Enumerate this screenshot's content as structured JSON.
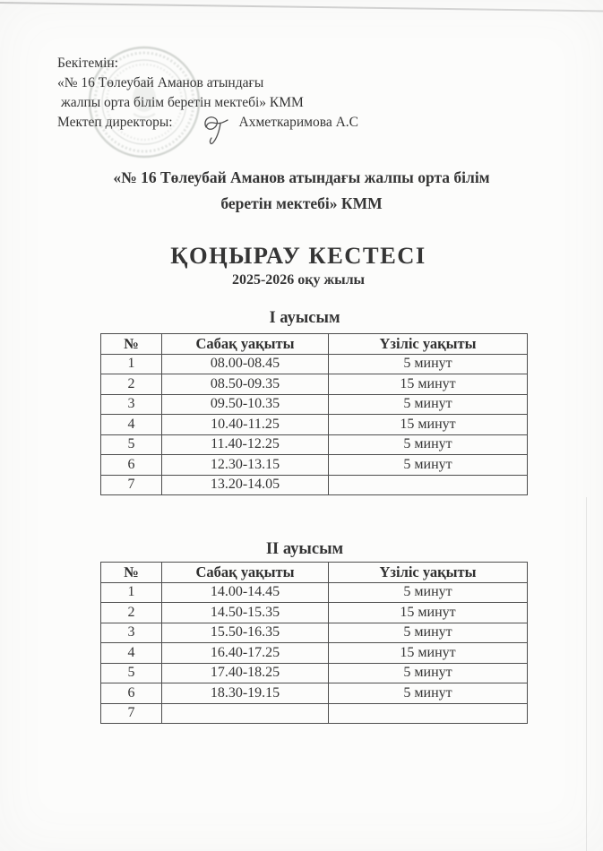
{
  "approval_block": {
    "line1": "Бекітемін:",
    "line2": "«№ 16 Төлеубай Аманов атындағы",
    "line3": "жалпы орта білім беретін мектебі» КММ",
    "director_label": "Мектеп директоры:",
    "director_name": "Ахметкаримова А.С"
  },
  "school_name": {
    "line1": "«№ 16 Төлеубай Аманов атындағы жалпы орта білім",
    "line2": "беретін мектебі» КММ"
  },
  "title": "ҚОҢЫРАУ КЕСТЕСІ",
  "subtitle": "2025-2026 оқу жылы",
  "tables": [
    {
      "section_title": "I ауысым",
      "headers": [
        "№",
        "Сабақ уақыты",
        "Үзіліс уақыты"
      ],
      "rows": [
        [
          "1",
          "08.00-08.45",
          "5 минут"
        ],
        [
          "2",
          "08.50-09.35",
          "15 минут"
        ],
        [
          "3",
          "09.50-10.35",
          "5 минут"
        ],
        [
          "4",
          "10.40-11.25",
          "15 минут"
        ],
        [
          "5",
          "11.40-12.25",
          "5 минут"
        ],
        [
          "6",
          "12.30-13.15",
          "5 минут"
        ],
        [
          "7",
          "13.20-14.05",
          ""
        ]
      ]
    },
    {
      "section_title": "II ауысым",
      "headers": [
        "№",
        "Сабақ уақыты",
        "Үзіліс уақыты"
      ],
      "rows": [
        [
          "1",
          "14.00-14.45",
          "5 минут"
        ],
        [
          "2",
          "14.50-15.35",
          "15 минут"
        ],
        [
          "3",
          "15.50-16.35",
          "5 минут"
        ],
        [
          "4",
          "16.40-17.25",
          "15 минут"
        ],
        [
          "5",
          "17.40-18.25",
          "5 минут"
        ],
        [
          "6",
          "18.30-19.15",
          "5 минут"
        ],
        [
          "7",
          "",
          ""
        ]
      ]
    }
  ],
  "colors": {
    "ink": "#353535",
    "table_border": "#4d4d4d",
    "paper": "#fcfcfb",
    "stamp": "#a9b0aa"
  }
}
